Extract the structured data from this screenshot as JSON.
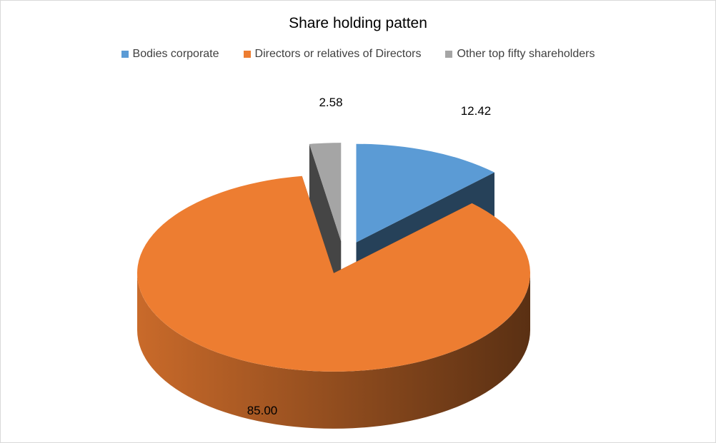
{
  "chart_data": {
    "type": "pie",
    "title": "Share holding patten",
    "legend_position": "top",
    "style": "3d-exploded",
    "slices": [
      {
        "label": "Bodies corporate",
        "value": 12.42,
        "value_label": "12.42",
        "color": "#5b9bd5"
      },
      {
        "label": "Directors or relatives of Directors",
        "value": 85.0,
        "value_label": "85.00",
        "color": "#ed7d31"
      },
      {
        "label": "Other top fifty shareholders",
        "value": 2.58,
        "value_label": "2.58",
        "color": "#a5a5a5"
      }
    ]
  }
}
